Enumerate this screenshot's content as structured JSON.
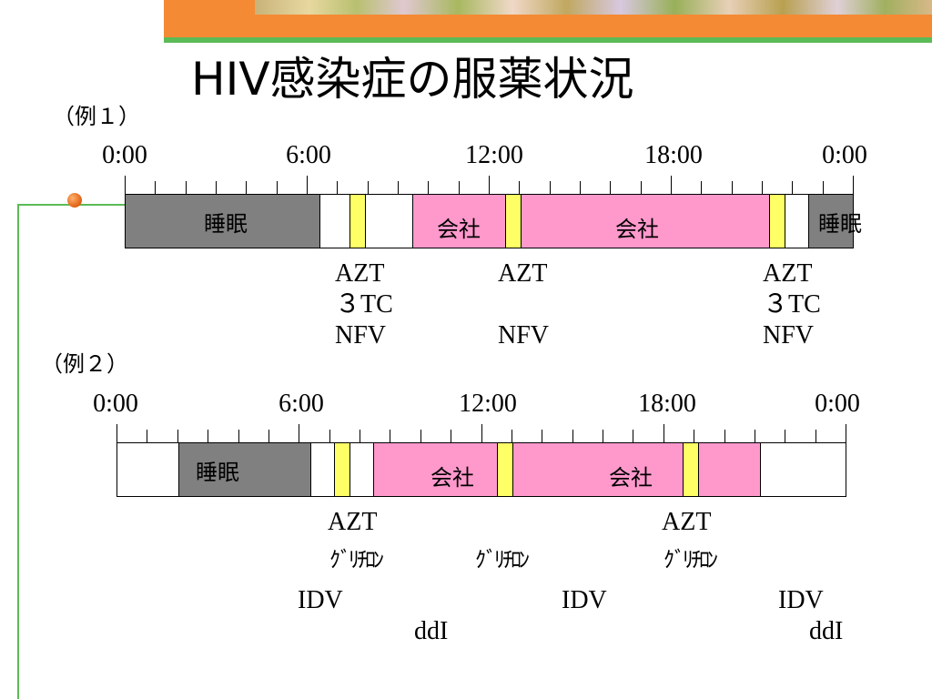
{
  "title": "HIV感染症の服薬状況",
  "colors": {
    "sleep": "#808080",
    "work": "#ff99cc",
    "dose": "#ffff66",
    "free": "#ffffff",
    "accent_orange": "#f58a34",
    "accent_green": "#5bbb57"
  },
  "examples": [
    {
      "label": "（例１）",
      "tick_labels": [
        "0:00",
        "6:00",
        "12:00",
        "18:00",
        "0:00"
      ],
      "segments": [
        {
          "kind": "sleep",
          "label": "睡眠"
        },
        {
          "kind": "free",
          "label": ""
        },
        {
          "kind": "dose",
          "label": ""
        },
        {
          "kind": "free",
          "label": ""
        },
        {
          "kind": "work",
          "label": "会社"
        },
        {
          "kind": "dose",
          "label": ""
        },
        {
          "kind": "work",
          "label": "会社"
        },
        {
          "kind": "dose",
          "label": ""
        },
        {
          "kind": "free",
          "label": ""
        },
        {
          "kind": "sleep",
          "label": "睡眠"
        }
      ],
      "drug_groups": [
        {
          "lines": [
            "AZT",
            "３TC",
            "NFV"
          ]
        },
        {
          "lines": [
            "AZT",
            "",
            "NFV"
          ]
        },
        {
          "lines": [
            "AZT",
            "３TC",
            "NFV"
          ]
        }
      ]
    },
    {
      "label": "（例２）",
      "tick_labels": [
        "0:00",
        "6:00",
        "12:00",
        "18:00",
        "0:00"
      ],
      "segments": [
        {
          "kind": "free",
          "label": ""
        },
        {
          "kind": "sleep",
          "label": "睡眠"
        },
        {
          "kind": "free",
          "label": ""
        },
        {
          "kind": "dose",
          "label": ""
        },
        {
          "kind": "free",
          "label": ""
        },
        {
          "kind": "work",
          "label": "会社"
        },
        {
          "kind": "dose",
          "label": ""
        },
        {
          "kind": "work",
          "label": "会社"
        },
        {
          "kind": "dose",
          "label": ""
        },
        {
          "kind": "work",
          "label": ""
        },
        {
          "kind": "free",
          "label": ""
        }
      ],
      "drugs": [
        {
          "text": "AZT"
        },
        {
          "text": "ｸﾞﾘﾁﾛﾝ"
        },
        {
          "text": "IDV"
        },
        {
          "text": "ddI"
        },
        {
          "text": "ｸﾞﾘﾁﾛﾝ"
        },
        {
          "text": "IDV"
        },
        {
          "text": "AZT"
        },
        {
          "text": "ｸﾞﾘﾁﾛﾝ"
        },
        {
          "text": "IDV"
        },
        {
          "text": "ddI"
        }
      ]
    }
  ]
}
